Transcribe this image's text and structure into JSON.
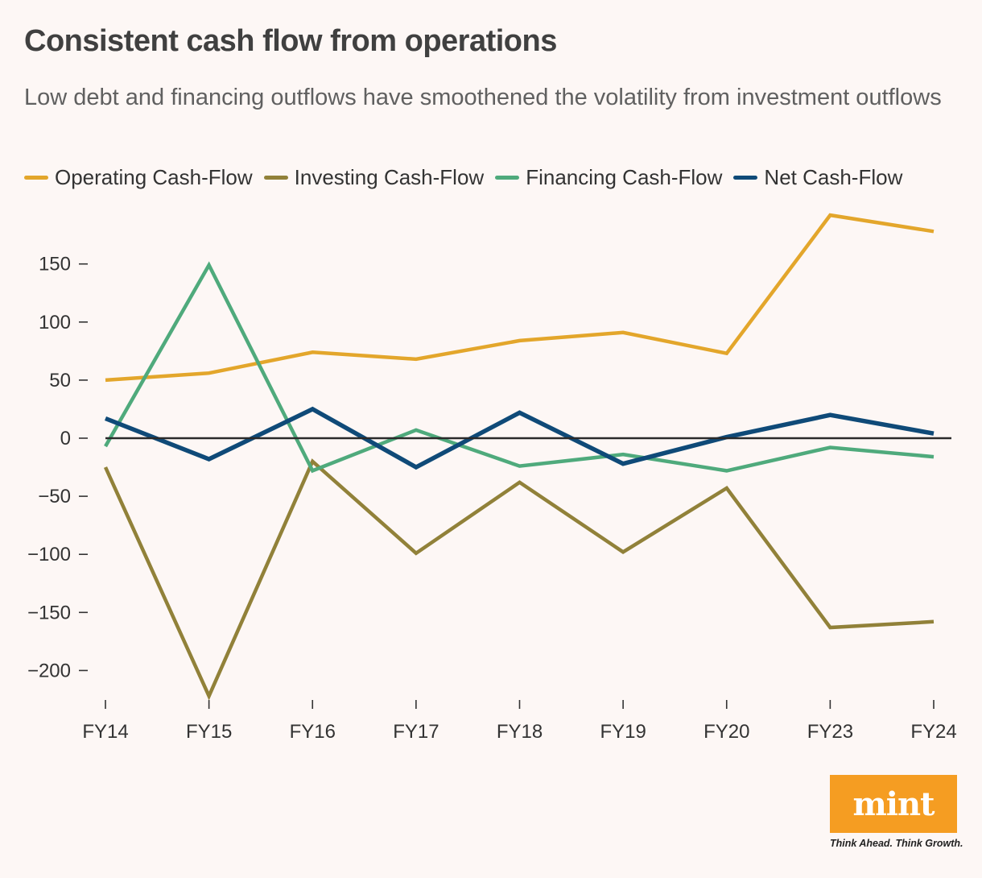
{
  "header": {
    "title": "Consistent cash flow from operations",
    "subtitle": "Low debt and financing outflows have smoothened the volatility from investment outflows"
  },
  "legend": [
    {
      "label": "Operating Cash-Flow",
      "color": "#e3a62b"
    },
    {
      "label": "Investing Cash-Flow",
      "color": "#918139"
    },
    {
      "label": "Financing Cash-Flow",
      "color": "#4faa7c"
    },
    {
      "label": "Net Cash-Flow",
      "color": "#0f4a78"
    }
  ],
  "chart_data": {
    "type": "line",
    "title": "Consistent cash flow from operations",
    "subtitle": "Low debt and financing outflows have smoothened the volatility from investment outflows",
    "xlabel": "",
    "ylabel": "",
    "categories": [
      "FY14",
      "FY15",
      "FY16",
      "FY17",
      "FY18",
      "FY19",
      "FY20",
      "FY23",
      "FY24"
    ],
    "ylim": [
      -225,
      195
    ],
    "yticks": [
      150,
      100,
      50,
      0,
      -50,
      -100,
      -150,
      -200
    ],
    "ytick_labels": [
      "150",
      "100",
      "50",
      "0",
      "−50",
      "−100",
      "−150",
      "−200"
    ],
    "grid": false,
    "legend_position": "top-left",
    "series": [
      {
        "name": "Operating Cash-Flow",
        "color": "#e3a62b",
        "values": [
          50,
          56,
          74,
          68,
          84,
          91,
          73,
          192,
          178
        ]
      },
      {
        "name": "Investing Cash-Flow",
        "color": "#918139",
        "values": [
          -25,
          -222,
          -20,
          -99,
          -38,
          -98,
          -43,
          -163,
          -158
        ]
      },
      {
        "name": "Financing Cash-Flow",
        "color": "#4faa7c",
        "values": [
          -7,
          149,
          -28,
          7,
          -24,
          -14,
          -28,
          -8,
          -16
        ]
      },
      {
        "name": "Net Cash-Flow",
        "color": "#0f4a78",
        "values": [
          17,
          -18,
          25,
          -25,
          22,
          -22,
          1,
          20,
          4
        ]
      }
    ]
  },
  "branding": {
    "logo_text": "mint",
    "tagline": "Think Ahead. Think Growth."
  }
}
